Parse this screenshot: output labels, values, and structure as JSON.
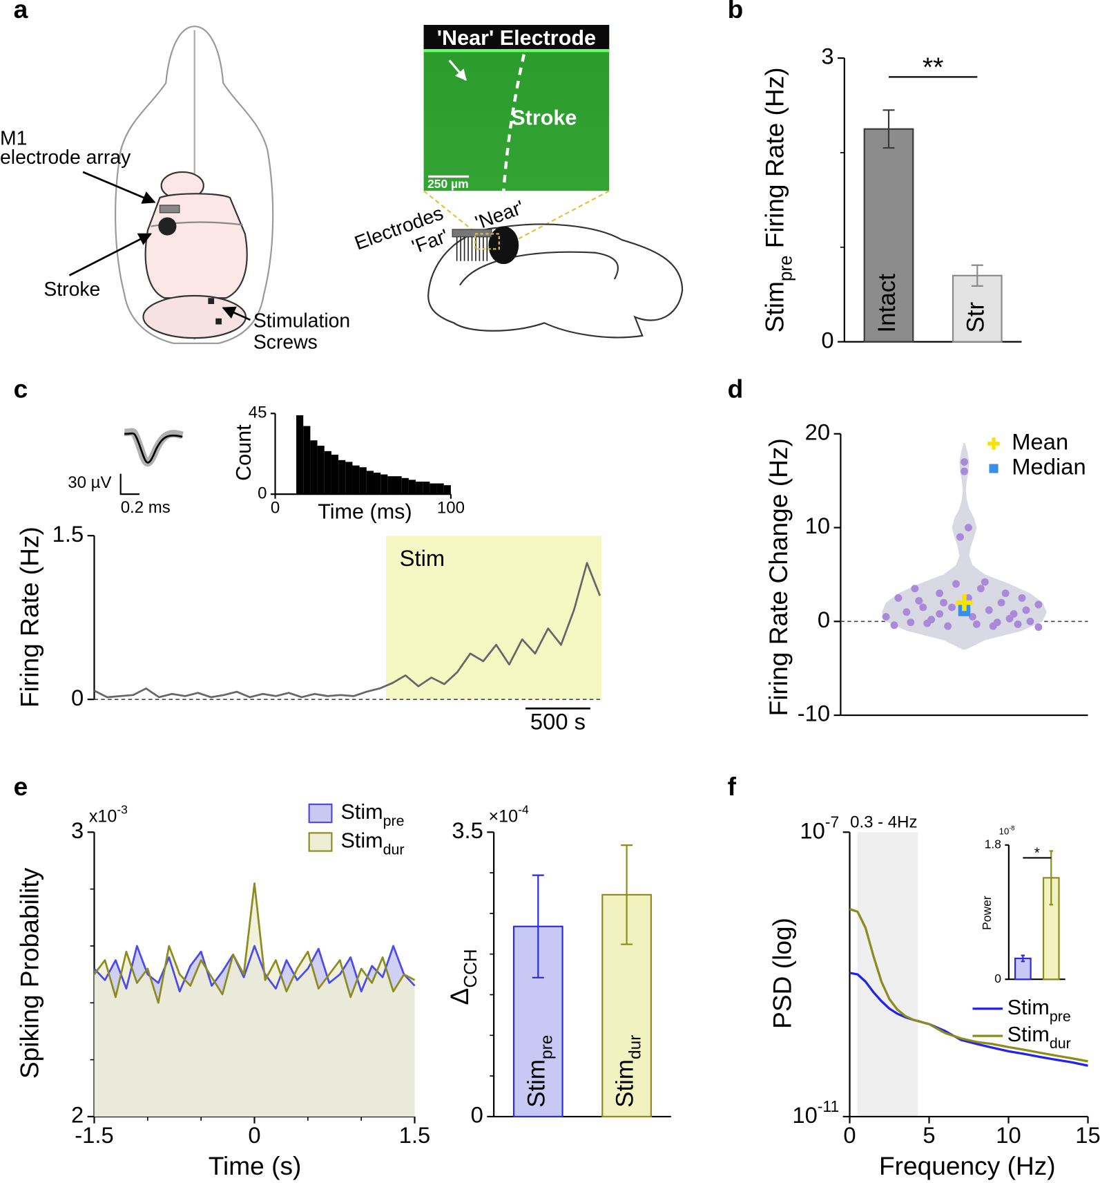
{
  "panel_labels": [
    "a",
    "b",
    "c",
    "d",
    "e",
    "f"
  ],
  "panel_a": {
    "m1": "M1",
    "array": "electrode array",
    "stroke": "Stroke",
    "stimulation": "Stimulation",
    "screws": "Screws",
    "near_electrode": "'Near' Electrode",
    "stroke_inset": "Stroke",
    "scale": "250 µm",
    "electrodes": "Electrodes",
    "far": "'Far'",
    "near": "'Near'"
  },
  "panel_c_waveform": {
    "amplitude": "30 µV",
    "duration": "0.2 ms"
  },
  "chart_data": [
    {
      "type": "bar",
      "ylabel": "Stimpre Firing Rate (Hz)",
      "categories": [
        "Intact",
        "Str"
      ],
      "values": [
        2.25,
        0.7
      ],
      "errors": [
        0.2,
        0.11
      ],
      "colors": [
        "#8c8c8c",
        "#e3e3e3"
      ],
      "edge_colors": [
        "#3a3a3a",
        "#8a8a8a"
      ],
      "ylim": [
        0,
        3
      ],
      "yticks": [
        0,
        3
      ],
      "yminorticks": [
        1,
        2
      ],
      "significance": "**"
    },
    {
      "type": "line",
      "ylabel": "Firing Rate (Hz)",
      "x": [
        0,
        100,
        200,
        300,
        400,
        500,
        600,
        700,
        800,
        900,
        1000,
        1100,
        1200,
        1300,
        1400,
        1500,
        1600,
        1700,
        1800,
        1900,
        2000,
        2100,
        2200,
        2300,
        2400,
        2500,
        2600,
        2700,
        2800,
        2900,
        3000,
        3100,
        3200,
        3300,
        3400,
        3500,
        3600,
        3700,
        3800,
        3900
      ],
      "series": [
        {
          "color": "#666666",
          "values": [
            0.08,
            0.02,
            0.03,
            0.04,
            0.1,
            0.02,
            0.05,
            0.03,
            0.06,
            0.02,
            0.04,
            0.07,
            0.02,
            0.05,
            0.03,
            0.06,
            0.02,
            0.05,
            0.03,
            0.04,
            0.03,
            0.07,
            0.1,
            0.15,
            0.22,
            0.12,
            0.2,
            0.14,
            0.25,
            0.42,
            0.35,
            0.5,
            0.32,
            0.55,
            0.42,
            0.65,
            0.5,
            0.82,
            1.25,
            0.95
          ]
        }
      ],
      "xlim": [
        0,
        3913
      ],
      "ylim": [
        0,
        1.5
      ],
      "yticks": [
        0,
        1.5
      ],
      "zero_line": true,
      "shade": {
        "label": "Stim",
        "start": 2250,
        "color": "#f6f8c4"
      },
      "scalebar": {
        "value": 500,
        "label": "500 s"
      }
    },
    {
      "type": "histogram",
      "ylabel": "Count",
      "xlabel": "Time (ms)",
      "bins": [
        0,
        4,
        8,
        12,
        16,
        20,
        24,
        28,
        32,
        36,
        40,
        44,
        48,
        52,
        56,
        60,
        64,
        68,
        72,
        76,
        80,
        84,
        88,
        92,
        96,
        100
      ],
      "counts": [
        0,
        0,
        0,
        44,
        38,
        30,
        27,
        24,
        22,
        19,
        18,
        16,
        15,
        13,
        12,
        11,
        10,
        10,
        9,
        8,
        7,
        7,
        6,
        6,
        5
      ],
      "color": "#000000",
      "xlim": [
        0,
        100
      ],
      "ylim": [
        0,
        45
      ],
      "xticks": [
        0,
        100
      ],
      "yticks": [
        0,
        45
      ]
    },
    {
      "type": "violin",
      "ylabel": "Firing Rate Change (Hz)",
      "x": [
        0,
        0,
        0.05,
        -0.05,
        -0.6,
        -0.8,
        -0.5,
        -0.3,
        -0.1,
        0.2,
        0.5,
        0.7,
        0.9,
        -0.95,
        -0.7,
        -0.4,
        -0.2,
        0.1,
        0.3,
        0.6,
        0.8,
        -0.85,
        -0.45,
        0.35,
        0.65,
        0.9,
        -0.25,
        0.05,
        0.45,
        -0.65,
        0.15,
        -0.3,
        0.55,
        0.25,
        -0.15,
        0.75,
        -0.55,
        0.4
      ],
      "values": [
        17,
        16,
        10,
        9,
        3.5,
        2.5,
        1.5,
        3,
        4,
        3.5,
        3,
        2.5,
        1.8,
        0.5,
        1,
        0.2,
        -0.5,
        0.5,
        1.2,
        0.8,
        0,
        -0.4,
        -0.2,
        -0.5,
        -0.3,
        -0.6,
        2,
        2.5,
        2,
        -0.1,
        -0.3,
        0.8,
        0.3,
        4.2,
        1.5,
        1.2,
        2.2,
        -0.1
      ],
      "point_color": "#a98ad8",
      "violin": {
        "y": [
          -3,
          -2,
          -1,
          0,
          1,
          2,
          3,
          4,
          5,
          6,
          7,
          8,
          9,
          10,
          11,
          12,
          13,
          14,
          15,
          16,
          17,
          18,
          19
        ],
        "width": [
          0.02,
          0.25,
          0.7,
          0.95,
          1,
          0.95,
          0.8,
          0.55,
          0.25,
          0.1,
          0.06,
          0.08,
          0.12,
          0.15,
          0.12,
          0.06,
          0.03,
          0.02,
          0.03,
          0.05,
          0.06,
          0.04,
          0.01
        ],
        "color": "#d9d9e4"
      },
      "mean": 2,
      "median": 1.2,
      "legend": [
        {
          "name": "Mean",
          "color": "#f5e400"
        },
        {
          "name": "Median",
          "color": "#3a8ee6"
        }
      ],
      "xlim": [
        -1.5,
        1.5
      ],
      "ylim": [
        -10,
        20
      ],
      "yticks": [
        -10,
        0,
        10,
        20
      ],
      "zero_line": true
    },
    {
      "type": "line",
      "ylabel": "Spiking Probability",
      "xlabel": "Time (s)",
      "multiplier": "x10-3",
      "x": [
        -1.5,
        -1.4,
        -1.3,
        -1.2,
        -1.1,
        -1,
        -0.9,
        -0.8,
        -0.7,
        -0.6,
        -0.5,
        -0.4,
        -0.3,
        -0.2,
        -0.1,
        0,
        0.1,
        0.2,
        0.3,
        0.4,
        0.5,
        0.6,
        0.7,
        0.8,
        0.9,
        1,
        1.1,
        1.2,
        1.3,
        1.4,
        1.5
      ],
      "series": [
        {
          "name": "Stimpre",
          "color": "#4a4af0",
          "fill": "#c8c8f0",
          "values": [
            2.52,
            2.48,
            2.55,
            2.45,
            2.6,
            2.5,
            2.47,
            2.56,
            2.44,
            2.53,
            2.58,
            2.46,
            2.51,
            2.57,
            2.49,
            2.6,
            2.5,
            2.45,
            2.55,
            2.48,
            2.52,
            2.59,
            2.47,
            2.5,
            2.56,
            2.44,
            2.53,
            2.49,
            2.6,
            2.5,
            2.46
          ]
        },
        {
          "name": "Stimdur",
          "color": "#8c8c1e",
          "fill": "#eeeed6",
          "values": [
            2.5,
            2.55,
            2.42,
            2.58,
            2.47,
            2.52,
            2.4,
            2.6,
            2.5,
            2.46,
            2.55,
            2.49,
            2.43,
            2.57,
            2.5,
            2.82,
            2.48,
            2.55,
            2.44,
            2.52,
            2.58,
            2.45,
            2.5,
            2.55,
            2.42,
            2.52,
            2.47,
            2.56,
            2.44,
            2.5,
            2.48
          ]
        }
      ],
      "xlim": [
        -1.5,
        1.5
      ],
      "ylim": [
        2,
        3
      ],
      "xticks": [
        -1.5,
        0,
        1.5
      ],
      "xminorticks": [
        -1,
        -0.5,
        0.5,
        1
      ],
      "yticks": [
        2,
        3
      ],
      "yminorticks": [
        2.2,
        2.4,
        2.6,
        2.8
      ]
    },
    {
      "type": "bar",
      "ylabel": "ΔCCH",
      "multiplier": "×10-4",
      "categories": [
        "Stimpre",
        "Stimdur"
      ],
      "values": [
        2.34,
        2.73
      ],
      "errors": [
        0.63,
        0.61
      ],
      "colors": [
        "#c8c8f4",
        "#f2f2c0"
      ],
      "edge_colors": [
        "#2a2ae0",
        "#8c8c1e"
      ],
      "ylim": [
        0,
        3.5
      ],
      "yticks": [
        0,
        3.5
      ],
      "yminorticks": [
        0.5,
        1,
        1.5,
        2,
        2.5,
        3
      ]
    },
    {
      "type": "line",
      "ylabel": "PSD (log)",
      "xlabel": "Frequency (Hz)",
      "log_y": true,
      "x": [
        0,
        0.5,
        1,
        1.5,
        2,
        2.5,
        3,
        3.5,
        4,
        5,
        6,
        7,
        8,
        9,
        10,
        11,
        12,
        13,
        14,
        15
      ],
      "series": [
        {
          "name": "Stimpre",
          "color": "#2222ee",
          "values": [
            1.05e-09,
            1e-09,
            7.9e-10,
            5.6e-10,
            4.2e-10,
            3.3e-10,
            2.8e-10,
            2.5e-10,
            2.3e-10,
            2e-10,
            1.6e-10,
            1.2e-10,
            1.05e-10,
            9.3e-11,
            8.3e-11,
            7.6e-11,
            6.9e-11,
            6.3e-11,
            5.8e-11,
            5.2e-11
          ]
        },
        {
          "name": "Stimdur",
          "color": "#8c8c1e",
          "values": [
            8.3e-09,
            7.6e-09,
            4.5e-09,
            1.8e-09,
            7.9e-10,
            4.5e-10,
            3.2e-10,
            2.6e-10,
            2.3e-10,
            2e-10,
            1.5e-10,
            1.26e-10,
            1.12e-10,
            1.05e-10,
            9.5e-11,
            8.7e-11,
            7.9e-11,
            7.2e-11,
            6.6e-11,
            6e-11
          ]
        }
      ],
      "xlim": [
        0,
        15
      ],
      "ylim": [
        1e-11,
        1e-07
      ],
      "xticks": [
        0,
        5,
        10,
        15
      ],
      "yticks": [
        {
          "value": 1e-11,
          "label": "10-11"
        },
        {
          "value": 1e-07,
          "label": "10-7"
        }
      ],
      "shade": {
        "label": "0.3 - 4Hz",
        "start": 0.5,
        "end": 4.3,
        "color": "#efefef"
      }
    },
    {
      "type": "bar",
      "ylabel": "Power",
      "multiplier": "10-8",
      "values": [
        0.28,
        1.36
      ],
      "errors": [
        0.04,
        0.36
      ],
      "colors": [
        "#c8c8f4",
        "#f2f2c0"
      ],
      "edge_colors": [
        "#2a2ae0",
        "#8c8c1e"
      ],
      "ylim": [
        0,
        1.8
      ],
      "yticks": [
        0,
        1.8
      ],
      "significance": "*"
    }
  ]
}
